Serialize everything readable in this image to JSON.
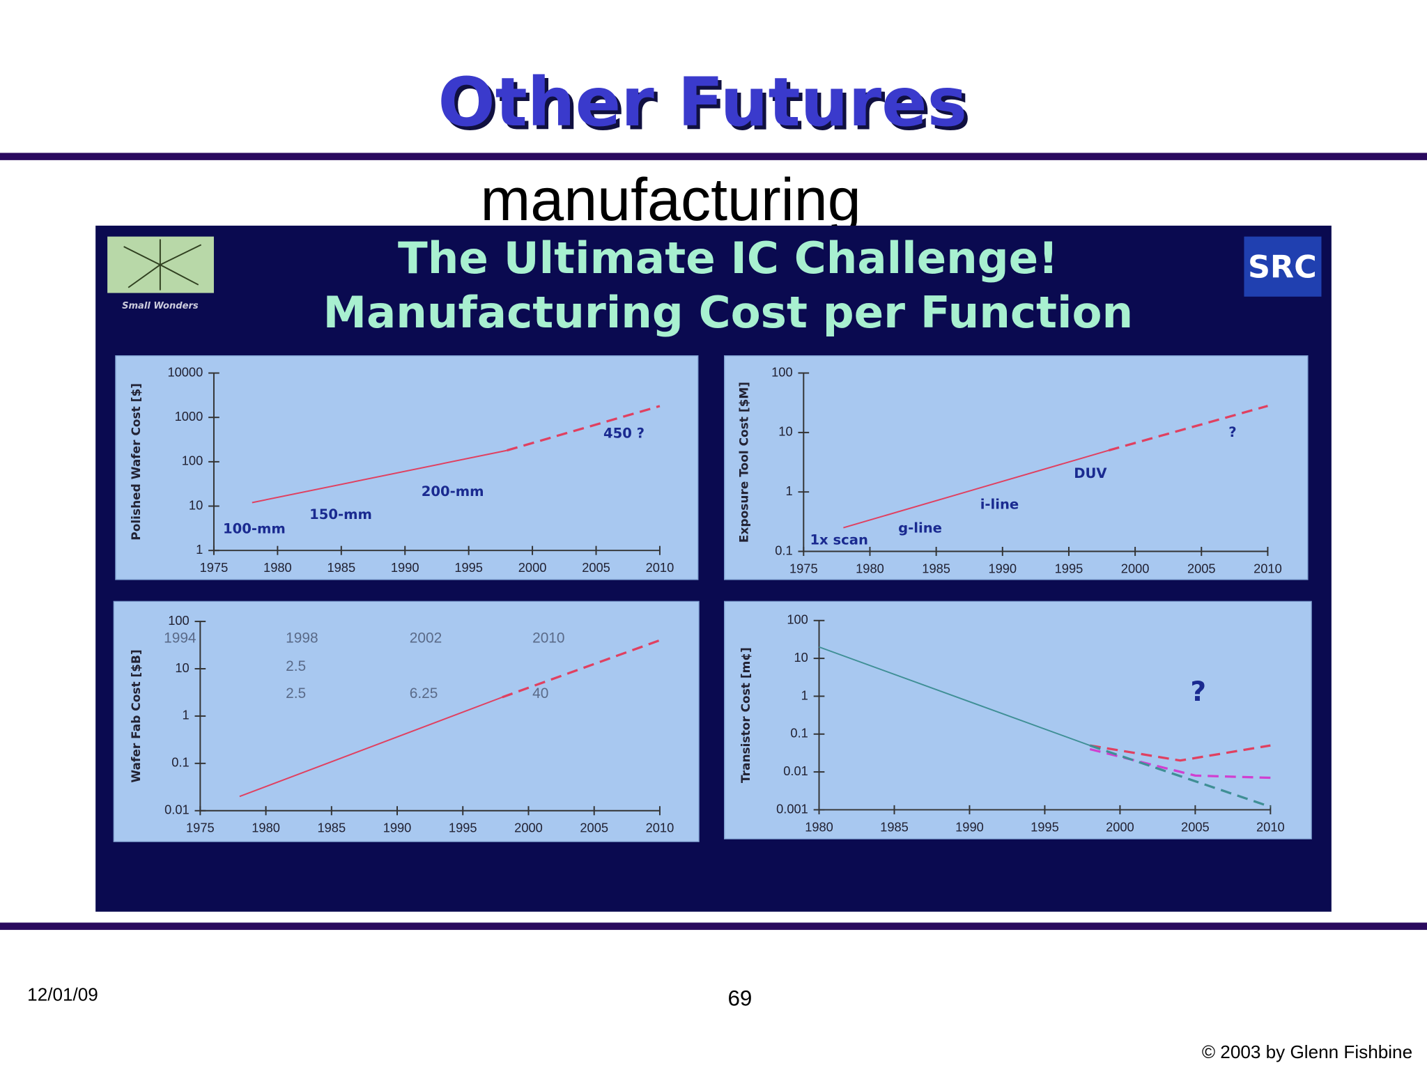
{
  "slide": {
    "title": "Other Futures",
    "subtitle": "manufacturing",
    "panel_title": [
      "The Ultimate IC Challenge!",
      "Manufacturing Cost per Function"
    ],
    "logo_left": "Small Wonders",
    "logo_right": "SRC",
    "date": "12/01/09",
    "page": "69",
    "copyright": "© 2003 by Glenn Fishbine"
  },
  "chart_data": [
    {
      "type": "line",
      "ylabel": "Polished Wafer Cost [$]",
      "log_y": true,
      "xlim": [
        1975,
        2010
      ],
      "xticks": [
        1975,
        1980,
        1985,
        1990,
        1995,
        2000,
        2005,
        2010
      ],
      "ylim": [
        1,
        10000
      ],
      "yticks": [
        1,
        10,
        100,
        1000,
        10000
      ],
      "series": [
        {
          "color": "#e04060",
          "style": "solid",
          "x": [
            1978,
            1998
          ],
          "values": [
            12,
            180
          ]
        },
        {
          "color": "#e04060",
          "style": "dashed",
          "x": [
            1998,
            2010
          ],
          "values": [
            180,
            1800
          ]
        }
      ],
      "annotations": [
        "100-mm",
        "150-mm",
        "200-mm",
        "450 ?"
      ]
    },
    {
      "type": "line",
      "ylabel": "Exposure Tool Cost [$M]",
      "log_y": true,
      "xlim": [
        1975,
        2010
      ],
      "xticks": [
        1975,
        1980,
        1985,
        1990,
        1995,
        2000,
        2005,
        2010
      ],
      "ylim": [
        0.1,
        100
      ],
      "yticks": [
        0.1,
        1,
        10,
        100
      ],
      "series": [
        {
          "color": "#e04060",
          "style": "solid",
          "x": [
            1978,
            1998
          ],
          "values": [
            0.25,
            5
          ]
        },
        {
          "color": "#e04060",
          "style": "dashed",
          "x": [
            1998,
            2010
          ],
          "values": [
            5,
            28
          ]
        }
      ],
      "annotations": [
        "1x scan",
        "g-line",
        "i-line",
        "DUV",
        "?"
      ]
    },
    {
      "type": "line",
      "ylabel": "Wafer Fab Cost [$B]",
      "log_y": true,
      "xlim": [
        1975,
        2010
      ],
      "xticks": [
        1975,
        1980,
        1985,
        1990,
        1995,
        2000,
        2005,
        2010
      ],
      "ylim": [
        0.01,
        100
      ],
      "yticks": [
        0.01,
        0.1,
        1,
        10,
        100
      ],
      "series": [
        {
          "color": "#e04060",
          "style": "solid",
          "x": [
            1978,
            1998
          ],
          "values": [
            0.02,
            2.5
          ]
        },
        {
          "color": "#e04060",
          "style": "dashed",
          "x": [
            1998,
            2010
          ],
          "values": [
            2.5,
            40
          ]
        }
      ],
      "annotations": [
        "1994",
        "1998",
        "2002",
        "2010",
        "2.5",
        "2.5",
        "6.25",
        "40"
      ]
    },
    {
      "type": "line",
      "ylabel": "Transistor Cost [m¢]",
      "log_y": true,
      "xlim": [
        1980,
        2010
      ],
      "xticks": [
        1980,
        1985,
        1990,
        1995,
        2000,
        2005,
        2010
      ],
      "ylim": [
        0.001,
        100
      ],
      "yticks": [
        0.001,
        0.01,
        0.1,
        1,
        10,
        100
      ],
      "series": [
        {
          "color": "#3f8f95",
          "style": "solid",
          "x": [
            1980,
            1998
          ],
          "values": [
            20,
            0.05
          ]
        },
        {
          "color": "#e04060",
          "style": "dashed",
          "x": [
            1998,
            2004,
            2010
          ],
          "values": [
            0.05,
            0.02,
            0.05
          ]
        },
        {
          "color": "#d040d0",
          "style": "dashed",
          "x": [
            1998,
            2005,
            2010
          ],
          "values": [
            0.04,
            0.008,
            0.007
          ]
        },
        {
          "color": "#3f8f95",
          "style": "dashed",
          "x": [
            1998,
            2010
          ],
          "values": [
            0.05,
            0.0012
          ]
        }
      ],
      "annotations": [
        "?"
      ]
    }
  ]
}
